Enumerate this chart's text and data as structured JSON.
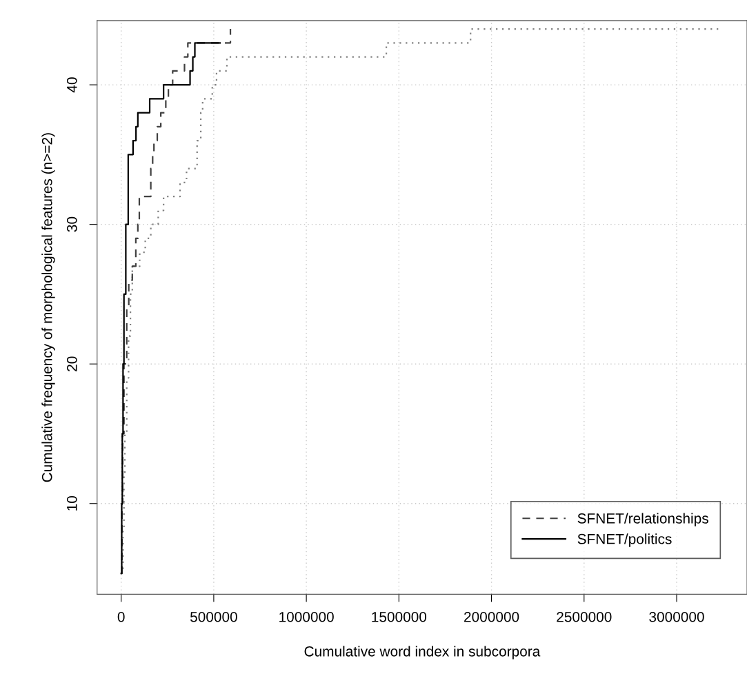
{
  "chart_data": {
    "type": "step",
    "xlabel": "Cumulative word index in subcorpora",
    "ylabel": "Cumulative frequency of morphological features (n>=2)",
    "xlim": [
      -130000,
      3380000
    ],
    "ylim": [
      3.5,
      44.6
    ],
    "xticks": [
      0,
      500000,
      1000000,
      1500000,
      2000000,
      2500000,
      3000000
    ],
    "yticks": [
      10,
      20,
      30,
      40
    ],
    "grid": true,
    "legend": "bottom right",
    "series": [
      {
        "color": "#808080",
        "line_style": "dotted",
        "x": [
          0,
          10000,
          15000,
          20000,
          30000,
          40000,
          50000,
          60000,
          100000,
          130000,
          160000,
          200000,
          229000,
          318000,
          353000,
          410000,
          430000,
          440000,
          492000,
          515000,
          571000,
          1432000,
          1887000,
          3240000
        ],
        "values": [
          5,
          8,
          12,
          15,
          19,
          22,
          25,
          27,
          28,
          29,
          30,
          31,
          32,
          33,
          34,
          36,
          38,
          39,
          40,
          41,
          42,
          43,
          44,
          44
        ]
      },
      {
        "name": "SFNET/relationships",
        "color": "#404040",
        "line_style": "dashed",
        "x": [
          0,
          4000,
          8000,
          15000,
          30000,
          41000,
          60000,
          79000,
          90000,
          98000,
          160000,
          170000,
          177000,
          195000,
          214000,
          241000,
          255000,
          278000,
          342000,
          360000,
          590000
        ],
        "values": [
          5,
          10,
          15,
          20,
          24,
          26,
          27,
          29,
          30,
          32,
          34,
          35,
          36,
          37,
          38,
          39,
          40,
          41,
          42,
          43,
          44
        ]
      },
      {
        "name": "SFNET/politics",
        "color": "#000000",
        "line_style": "solid",
        "x": [
          0,
          3000,
          6000,
          10000,
          15000,
          25000,
          38000,
          64000,
          80000,
          90000,
          154000,
          229000,
          372000,
          387000,
          398000,
          534000
        ],
        "values": [
          5,
          10,
          15,
          20,
          25,
          30,
          35,
          36,
          37,
          38,
          39,
          40,
          41,
          42,
          43,
          43
        ]
      }
    ]
  }
}
